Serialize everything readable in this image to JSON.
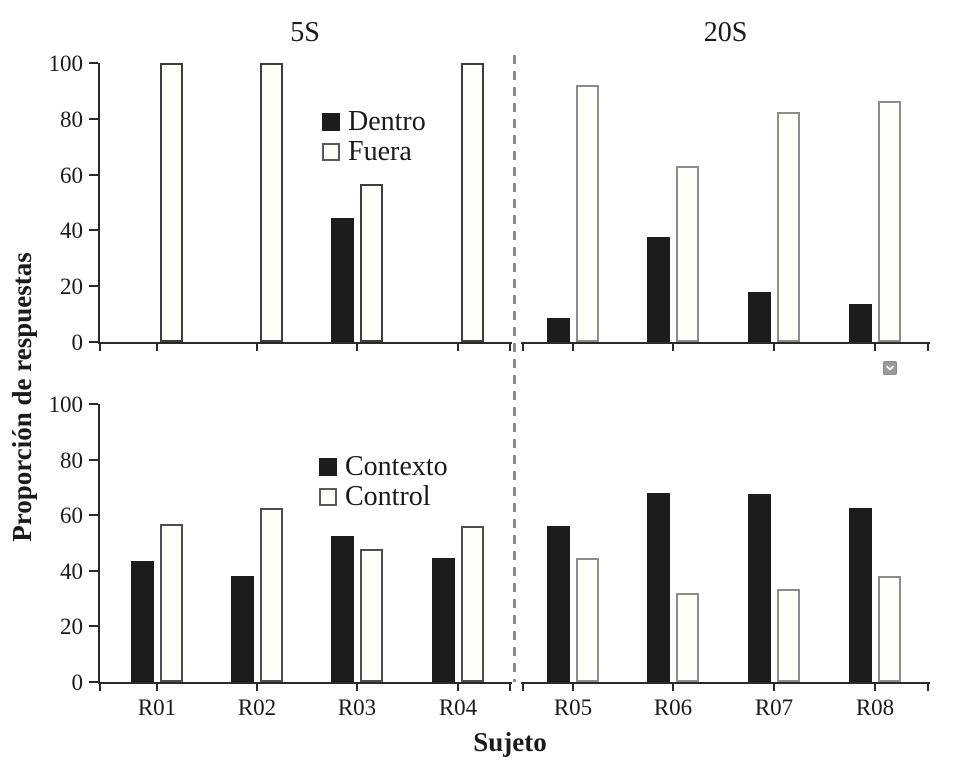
{
  "figure": {
    "y_axis_title": "Proporción de respuestas",
    "x_axis_title": "Sujeto",
    "column_titles": [
      "5S",
      "20S"
    ]
  },
  "colors": {
    "bar_black": "#1c1c1c",
    "bar_white_fill": "#fffef9",
    "axis": "#2a2a2a",
    "separator_gray": "#8a8a8a",
    "text": "#1a1a1a",
    "chevron_button_bg": "#9a9a9a"
  },
  "icons": {
    "chevron_down": "v-shaped chevron in gray square button"
  },
  "chart_data": [
    {
      "type": "bar",
      "panel": "top-left",
      "title": "5S",
      "categories": [
        "R01",
        "R02",
        "R03",
        "R04"
      ],
      "series": [
        {
          "name": "Dentro",
          "style": "black",
          "values": [
            0,
            0,
            44.5,
            0
          ]
        },
        {
          "name": "Fuera",
          "style": "white",
          "values": [
            100,
            100,
            56.5,
            100
          ]
        }
      ],
      "ylim": [
        0,
        100
      ],
      "yticks": [
        0,
        20,
        40,
        60,
        80,
        100
      ],
      "grid": false,
      "legend_position": "upper-center-right",
      "show_y_tick_labels": true,
      "show_x_tick_labels": false,
      "white_bar_border": "#3d3d3d"
    },
    {
      "type": "bar",
      "panel": "top-right",
      "title": "20S",
      "categories": [
        "R05",
        "R06",
        "R07",
        "R08"
      ],
      "series": [
        {
          "name": "Dentro",
          "style": "black",
          "values": [
            8.5,
            37.5,
            18,
            13.5
          ]
        },
        {
          "name": "Fuera",
          "style": "white",
          "values": [
            92,
            63,
            82.5,
            86.5
          ]
        }
      ],
      "ylim": [
        0,
        100
      ],
      "yticks": [
        0,
        20,
        40,
        60,
        80,
        100
      ],
      "grid": false,
      "legend_position": "none",
      "show_y_tick_labels": false,
      "show_x_tick_labels": false,
      "white_bar_border": "#8c8c8c"
    },
    {
      "type": "bar",
      "panel": "bottom-left",
      "title": "",
      "categories": [
        "R01",
        "R02",
        "R03",
        "R04"
      ],
      "series": [
        {
          "name": "Contexto",
          "style": "black",
          "values": [
            43.5,
            38,
            52.5,
            44.5
          ]
        },
        {
          "name": "Control",
          "style": "white",
          "values": [
            57,
            62.5,
            48,
            56
          ]
        }
      ],
      "ylim": [
        0,
        100
      ],
      "yticks": [
        0,
        20,
        40,
        60,
        80,
        100
      ],
      "grid": false,
      "legend_position": "upper-center-right",
      "show_y_tick_labels": true,
      "show_x_tick_labels": true,
      "white_bar_border": "#4d4d4d"
    },
    {
      "type": "bar",
      "panel": "bottom-right",
      "title": "",
      "categories": [
        "R05",
        "R06",
        "R07",
        "R08"
      ],
      "series": [
        {
          "name": "Contexto",
          "style": "black",
          "values": [
            56,
            68,
            67.5,
            62.5
          ]
        },
        {
          "name": "Control",
          "style": "white",
          "values": [
            44.5,
            32,
            33.5,
            38
          ]
        }
      ],
      "ylim": [
        0,
        100
      ],
      "yticks": [
        0,
        20,
        40,
        60,
        80,
        100
      ],
      "grid": false,
      "legend_position": "none",
      "show_y_tick_labels": false,
      "show_x_tick_labels": true,
      "white_bar_border": "#8c8c8c"
    }
  ]
}
